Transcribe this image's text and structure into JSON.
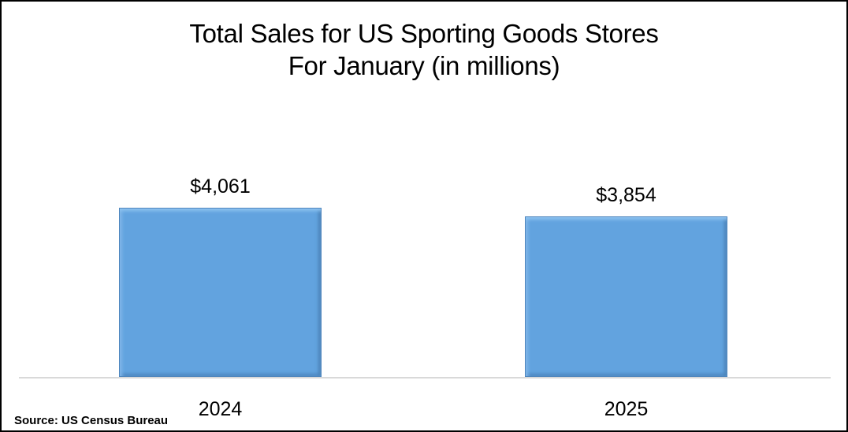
{
  "chart_data": {
    "type": "bar",
    "title": "Total Sales for US Sporting Goods Stores",
    "subtitle": "For January (in millions)",
    "categories": [
      "2024",
      "2025"
    ],
    "values": [
      4061,
      3854
    ],
    "value_labels": [
      "$4,061",
      "$3,854"
    ],
    "xlabel": "",
    "ylabel": "",
    "ylim": [
      0,
      4061
    ],
    "grid": false,
    "legend": "none",
    "bar_color": "#62a3df",
    "source": "Source: US Census Bureau"
  },
  "title": {
    "line1": "Total Sales for US Sporting Goods Stores",
    "line2": "For January (in millions)"
  },
  "bars": [
    {
      "category": "2024",
      "value": 4061,
      "label": "$4,061"
    },
    {
      "category": "2025",
      "value": 3854,
      "label": "$3,854"
    }
  ],
  "footer": {
    "source": "Source: US Census Bureau"
  }
}
